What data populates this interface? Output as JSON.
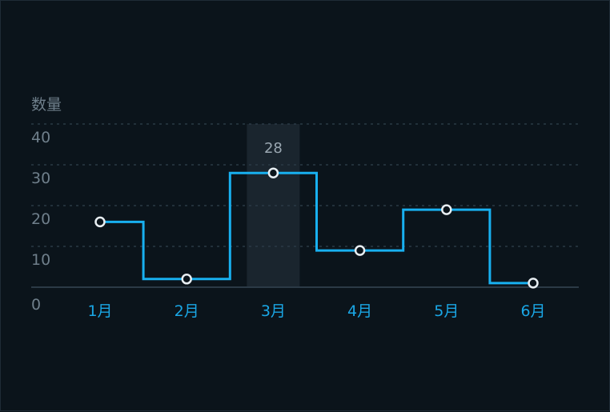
{
  "chart_data": {
    "type": "line",
    "step": "middle",
    "categories": [
      "1月",
      "2月",
      "3月",
      "4月",
      "5月",
      "6月"
    ],
    "series": [
      {
        "values": [
          16,
          2,
          28,
          9,
          19,
          1
        ]
      }
    ],
    "ylabel": "数量",
    "yticks": [
      0,
      10,
      20,
      30,
      40
    ],
    "ylim": [
      0,
      40
    ],
    "grid": true,
    "highlighted_category": "3月",
    "data_label": {
      "category": "3月",
      "text": "28"
    },
    "colors": {
      "series": "#18b0f0",
      "point_stroke": "#e8eef2",
      "x_tick": "#1aa7e6",
      "y_tick": "#6f7f8b",
      "background": "#0b141b"
    }
  }
}
